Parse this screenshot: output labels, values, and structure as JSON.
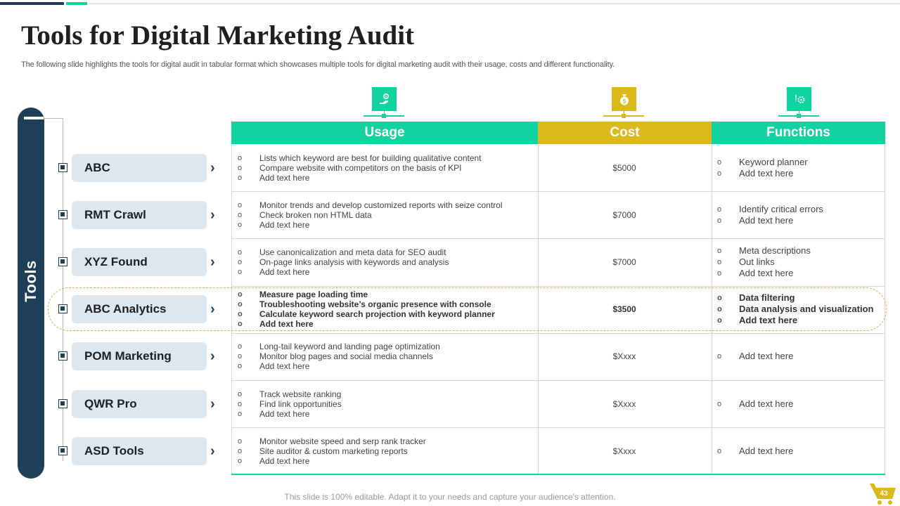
{
  "title": "Tools for Digital Marketing Audit",
  "subtitle": "The following slide highlights the tools for digital audit in tabular format which showcases multiple tools for digital marketing audit with their usage, costs and different functionality.",
  "sidebar_label": "Tools",
  "columns": {
    "usage": "Usage",
    "cost": "Cost",
    "functions": "Functions"
  },
  "colors": {
    "teal": "#12d3a0",
    "gold": "#dbb91a",
    "navy": "#1f3e58"
  },
  "icons": {
    "usage": "hand-gear-icon",
    "cost": "money-bag-icon",
    "functions": "gears-icon"
  },
  "rows": [
    {
      "tool": "ABC",
      "usage": [
        "Lists which keyword are best for building qualitative content",
        "Compare website with competitors on the basis of KPI",
        "Add text here"
      ],
      "cost": "$5000",
      "functions": [
        "Keyword planner",
        "Add text here"
      ]
    },
    {
      "tool": "RMT Crawl",
      "usage": [
        "Monitor trends and develop customized reports with seize control",
        "Check broken non HTML data",
        "Add text here"
      ],
      "cost": "$7000",
      "functions": [
        "Identify critical errors",
        "Add text here"
      ]
    },
    {
      "tool": "XYZ Found",
      "usage": [
        "Use canonicalization and meta data for SEO audit",
        "On-page links analysis with keywords and analysis",
        "Add text here"
      ],
      "cost": "$7000",
      "functions": [
        "Meta descriptions",
        "Out links",
        "Add text here"
      ]
    },
    {
      "tool": "ABC Analytics",
      "usage": [
        "Measure page loading time",
        "Troubleshooting website’s organic presence with console",
        "Calculate keyword search projection with keyword planner",
        "Add text here"
      ],
      "cost": "$3500",
      "functions": [
        "Data filtering",
        "Data analysis and visualization",
        "Add text here"
      ]
    },
    {
      "tool": "POM Marketing",
      "usage": [
        "Long-tail keyword and landing page optimization",
        "Monitor blog pages and social media channels",
        "Add text here"
      ],
      "cost": "$Xxxx",
      "functions": [
        "Add text here"
      ]
    },
    {
      "tool": "QWR Pro",
      "usage": [
        "Track website ranking",
        "Find link opportunities",
        "Add text here"
      ],
      "cost": "$Xxxx",
      "functions": [
        "Add text here"
      ]
    },
    {
      "tool": "ASD Tools",
      "usage": [
        "Monitor website speed and serp rank tracker",
        "Site auditor & custom marketing reports",
        "Add text here"
      ],
      "cost": "$Xxxx",
      "functions": [
        "Add text here"
      ]
    }
  ],
  "footer": "This slide is 100% editable. Adapt it to your needs and capture your audience's attention.",
  "page_number": "43"
}
